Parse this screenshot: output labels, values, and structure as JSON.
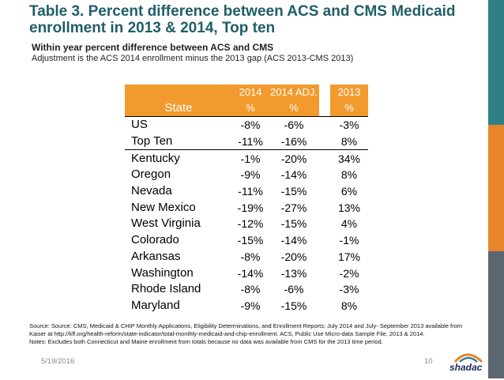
{
  "title": "Table 3. Percent difference between ACS and CMS Medicaid enrollment in 2013 & 2014, Top ten",
  "subtitle": "Within year percent difference between ACS and CMS",
  "subnote": "Adjustment is the ACS 2014 enrollment minus the 2013 gap (ACS 2013-CMS 2013)",
  "table": {
    "header_row1": {
      "c1": "2014",
      "c2": "2014 ADJ.",
      "c3": "2013"
    },
    "header_row2": {
      "state": "State",
      "c1": "%",
      "c2": "%",
      "c3": "%"
    },
    "rows": [
      {
        "state": "US",
        "c1": "-8%",
        "c2": "-6%",
        "c3": "-3%"
      },
      {
        "state": "Top Ten",
        "c1": "-11%",
        "c2": "-16%",
        "c3": "8%"
      },
      {
        "state": "Kentucky",
        "c1": "-1%",
        "c2": "-20%",
        "c3": "34%"
      },
      {
        "state": "Oregon",
        "c1": "-9%",
        "c2": "-14%",
        "c3": "8%"
      },
      {
        "state": "Nevada",
        "c1": "-11%",
        "c2": "-15%",
        "c3": "6%"
      },
      {
        "state": "New Mexico",
        "c1": "-19%",
        "c2": "-27%",
        "c3": "13%"
      },
      {
        "state": "West Virginia",
        "c1": "-12%",
        "c2": "-15%",
        "c3": "4%"
      },
      {
        "state": "Colorado",
        "c1": "-15%",
        "c2": "-14%",
        "c3": "-1%"
      },
      {
        "state": "Arkansas",
        "c1": "-8%",
        "c2": "-20%",
        "c3": "17%"
      },
      {
        "state": "Washington",
        "c1": "-14%",
        "c2": "-13%",
        "c3": "-2%"
      },
      {
        "state": "Rhode Island",
        "c1": "-8%",
        "c2": "-6%",
        "c3": "-3%"
      },
      {
        "state": "Maryland",
        "c1": "-9%",
        "c2": "-15%",
        "c3": "8%"
      }
    ]
  },
  "footnote": {
    "line1": "Source: Source: CMS, Medicaid & CHIP Monthly Applications, Eligibility Determinations, and Enrollment Reports: July 2014 and July- September 2013 available from",
    "line2": "Kaiser at http://kff.org/health-reform/state-indicator/total-monthly-medicaid-and-chip-enrollment.  ACS, Public Use Micro-data Sample File, 2013 & 2014.",
    "line3": "Notes: Excludes both Connecticut and Maine enrollment from totals because no data was available from CMS for the 2013 time period."
  },
  "footer": {
    "date": "5/19/2016",
    "page": "10",
    "logo_text": "shadac"
  },
  "colors": {
    "title": "#1f5e68",
    "header_fill": "#f29a2e",
    "bar_teal": "#2e7f86",
    "bar_orange": "#e8842c",
    "bar_gray": "#5c6670"
  }
}
